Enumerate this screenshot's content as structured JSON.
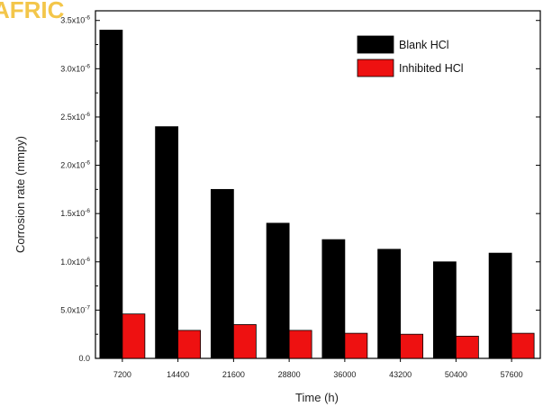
{
  "watermark": "AFRIC",
  "chart_data": {
    "type": "bar",
    "title": "",
    "xlabel": "Time (h)",
    "ylabel": "Corrosion rate (mmpy)",
    "categories": [
      "7200",
      "14400",
      "21600",
      "28800",
      "36000",
      "43200",
      "50400",
      "57600"
    ],
    "series": [
      {
        "name": "Blank HCl",
        "color": "#000000",
        "values": [
          3.4e-06,
          2.4e-06,
          1.75e-06,
          1.4e-06,
          1.23e-06,
          1.13e-06,
          1e-06,
          1.09e-06
        ]
      },
      {
        "name": "Inhibited HCl",
        "color": "#ee1111",
        "values": [
          4.6e-07,
          2.9e-07,
          3.5e-07,
          2.9e-07,
          2.6e-07,
          2.5e-07,
          2.3e-07,
          2.6e-07
        ]
      }
    ],
    "ylim": [
      0,
      3.6e-06
    ],
    "yticks": [
      {
        "value": 0,
        "base": "0.0",
        "exp": ""
      },
      {
        "value": 5e-07,
        "base": "5.0x10",
        "exp": "-7"
      },
      {
        "value": 1e-06,
        "base": "1.0x10",
        "exp": "-6"
      },
      {
        "value": 1.5e-06,
        "base": "1.5x10",
        "exp": "-6"
      },
      {
        "value": 2e-06,
        "base": "2.0x10",
        "exp": "-6"
      },
      {
        "value": 2.5e-06,
        "base": "2.5x10",
        "exp": "-6"
      },
      {
        "value": 3e-06,
        "base": "3.0x10",
        "exp": "-6"
      },
      {
        "value": 3.5e-06,
        "base": "3.5x10",
        "exp": "-6"
      }
    ],
    "legend": {
      "position": "top-right"
    },
    "grid": false
  }
}
